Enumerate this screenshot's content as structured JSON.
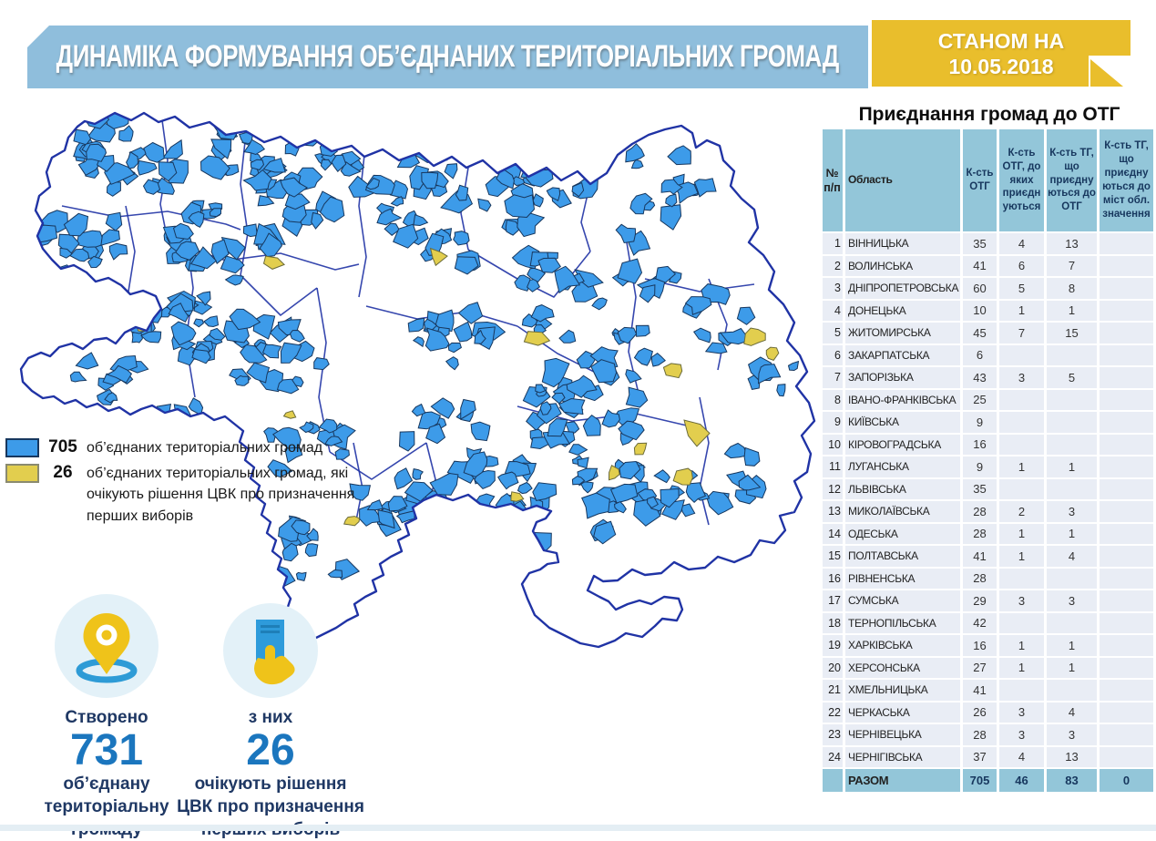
{
  "header": {
    "title": "ДИНАМІКА ФОРМУВАННЯ ОБ’ЄДНАНИХ ТЕРИТОРІАЛЬНИХ ГРОМАД",
    "badge_line1": "СТАНОМ НА",
    "badge_line2": "10.05.2018"
  },
  "legend": {
    "items": [
      {
        "value": "705",
        "label": "об’єднаних територіальних громад",
        "color": "#3D9BE9",
        "border": "#17375E"
      },
      {
        "value": "26",
        "label": "об’єднаних територіальних громад, які очікують рішення ЦВК про призначення перших виборів",
        "color": "#E2CE4E",
        "border": "#8a8a70"
      }
    ]
  },
  "stats": [
    {
      "icon": "map-pin-icon",
      "top_label": "Створено",
      "value": "731",
      "bottom_label": "об’єднану територіальну громаду"
    },
    {
      "icon": "ballot-hand-icon",
      "top_label": "з них",
      "value": "26",
      "bottom_label": "очікують рішення ЦВК про призначення перших виборів"
    }
  ],
  "table": {
    "title": "Приєднання громад до ОТГ",
    "columns": [
      "№ п/п",
      "Область",
      "К-сть ОТГ",
      "К-сть ОТГ, до яких приєдн уються",
      "К-сть ТГ, що приєдну ються до ОТГ",
      "К-сть ТГ, що приєдну ються до міст обл. значення"
    ],
    "rows": [
      [
        "1",
        "ВІННИЦЬКА",
        "35",
        "4",
        "13",
        ""
      ],
      [
        "2",
        "ВОЛИНСЬКА",
        "41",
        "6",
        "7",
        ""
      ],
      [
        "3",
        "ДНІПРОПЕТРОВСЬКА",
        "60",
        "5",
        "8",
        ""
      ],
      [
        "4",
        "ДОНЕЦЬКА",
        "10",
        "1",
        "1",
        ""
      ],
      [
        "5",
        "ЖИТОМИРСЬКА",
        "45",
        "7",
        "15",
        ""
      ],
      [
        "6",
        "ЗАКАРПАТСЬКА",
        "6",
        "",
        "",
        ""
      ],
      [
        "7",
        "ЗАПОРІЗЬКА",
        "43",
        "3",
        "5",
        ""
      ],
      [
        "8",
        "ІВАНО-ФРАНКІВСЬКА",
        "25",
        "",
        "",
        ""
      ],
      [
        "9",
        "КИЇВСЬКА",
        "9",
        "",
        "",
        ""
      ],
      [
        "10",
        "КІРОВОГРАДСЬКА",
        "16",
        "",
        "",
        ""
      ],
      [
        "11",
        "ЛУГАНСЬКА",
        "9",
        "1",
        "1",
        ""
      ],
      [
        "12",
        "ЛЬВІВСЬКА",
        "35",
        "",
        "",
        ""
      ],
      [
        "13",
        "МИКОЛАЇВСЬКА",
        "28",
        "2",
        "3",
        ""
      ],
      [
        "14",
        "ОДЕСЬКА",
        "28",
        "1",
        "1",
        ""
      ],
      [
        "15",
        "ПОЛТАВСЬКА",
        "41",
        "1",
        "4",
        ""
      ],
      [
        "16",
        "РІВНЕНСЬКА",
        "28",
        "",
        "",
        ""
      ],
      [
        "17",
        "СУМСЬКА",
        "29",
        "3",
        "3",
        ""
      ],
      [
        "18",
        "ТЕРНОПІЛЬСЬКА",
        "42",
        "",
        "",
        ""
      ],
      [
        "19",
        "ХАРКІВСЬКА",
        "16",
        "1",
        "1",
        ""
      ],
      [
        "20",
        "ХЕРСОНСЬКА",
        "27",
        "1",
        "1",
        ""
      ],
      [
        "21",
        "ХМЕЛЬНИЦЬКА",
        "41",
        "",
        "",
        ""
      ],
      [
        "22",
        "ЧЕРКАСЬКА",
        "26",
        "3",
        "4",
        ""
      ],
      [
        "23",
        "ЧЕРНІВЕЦЬКА",
        "28",
        "3",
        "3",
        ""
      ],
      [
        "24",
        "ЧЕРНІГІВСЬКА",
        "37",
        "4",
        "13",
        ""
      ]
    ],
    "total": [
      "",
      "РАЗОМ",
      "705",
      "46",
      "83",
      "0"
    ]
  },
  "colors": {
    "banner": "#8FBEDC",
    "badge": "#E9BE2C",
    "table_header": "#93C6D9",
    "row_bg": "#E9EDF5",
    "navy": "#17375E",
    "accent_blue": "#1B76BE",
    "map_blue": "#3D9BE9",
    "map_yellow": "#E2CE4E",
    "map_line": "#2033A5",
    "icon_circle": "#E3F1F8",
    "icon_blue": "#2E9BD6",
    "icon_yellow": "#EFC31A"
  }
}
